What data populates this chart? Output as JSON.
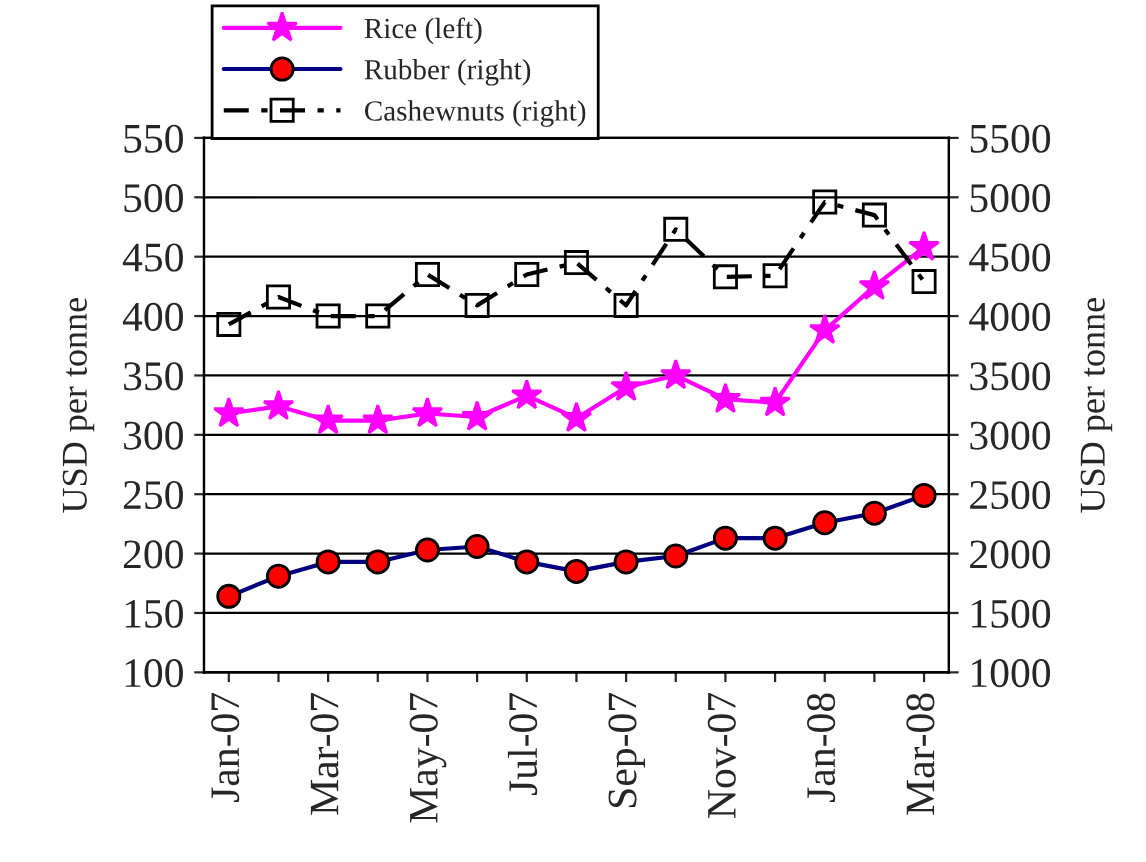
{
  "chart_data": {
    "type": "line",
    "ylabel": "USD per tonne",
    "y2label": "USD per tonne",
    "categories": [
      "Jan-07",
      null,
      "Mar-07",
      null,
      "May-07",
      null,
      "Jul-07",
      null,
      "Sep-07",
      null,
      "Nov-07",
      null,
      "Jan-08",
      null,
      "Mar-08"
    ],
    "series": [
      {
        "name": "Rice (left)",
        "color": "#ff00ff",
        "marker": "star",
        "line_style": "solid",
        "values": [
          318,
          324,
          312,
          312,
          318,
          315,
          333,
          314,
          340,
          350,
          330,
          327,
          388,
          425,
          458
        ]
      },
      {
        "name": "Rubber (right)",
        "color": "#000080",
        "marker": "circle",
        "line_style": "solid",
        "axis": "y2",
        "values": [
          1640,
          1810,
          1930,
          1930,
          2030,
          2060,
          1930,
          1850,
          1930,
          1980,
          2130,
          2130,
          2260,
          2340,
          2490
        ]
      },
      {
        "name": "Cashewnuts (right)",
        "color": "#000000",
        "marker": "square",
        "line_style": "dashed",
        "axis": "y2",
        "values": [
          3930,
          4160,
          4000,
          4000,
          4350,
          4090,
          4350,
          4450,
          4090,
          4730,
          4330,
          4340,
          4960,
          4850,
          4290
        ]
      }
    ],
    "ylim": [
      100,
      550
    ],
    "yticks": [
      100,
      150,
      200,
      250,
      300,
      350,
      400,
      450,
      500,
      550
    ],
    "y2lim": [
      1000,
      5500
    ],
    "y2ticks": [
      1000,
      1500,
      2000,
      2500,
      3000,
      3500,
      4000,
      4500,
      5000,
      5500
    ],
    "grid": "y",
    "legend": "top left"
  }
}
